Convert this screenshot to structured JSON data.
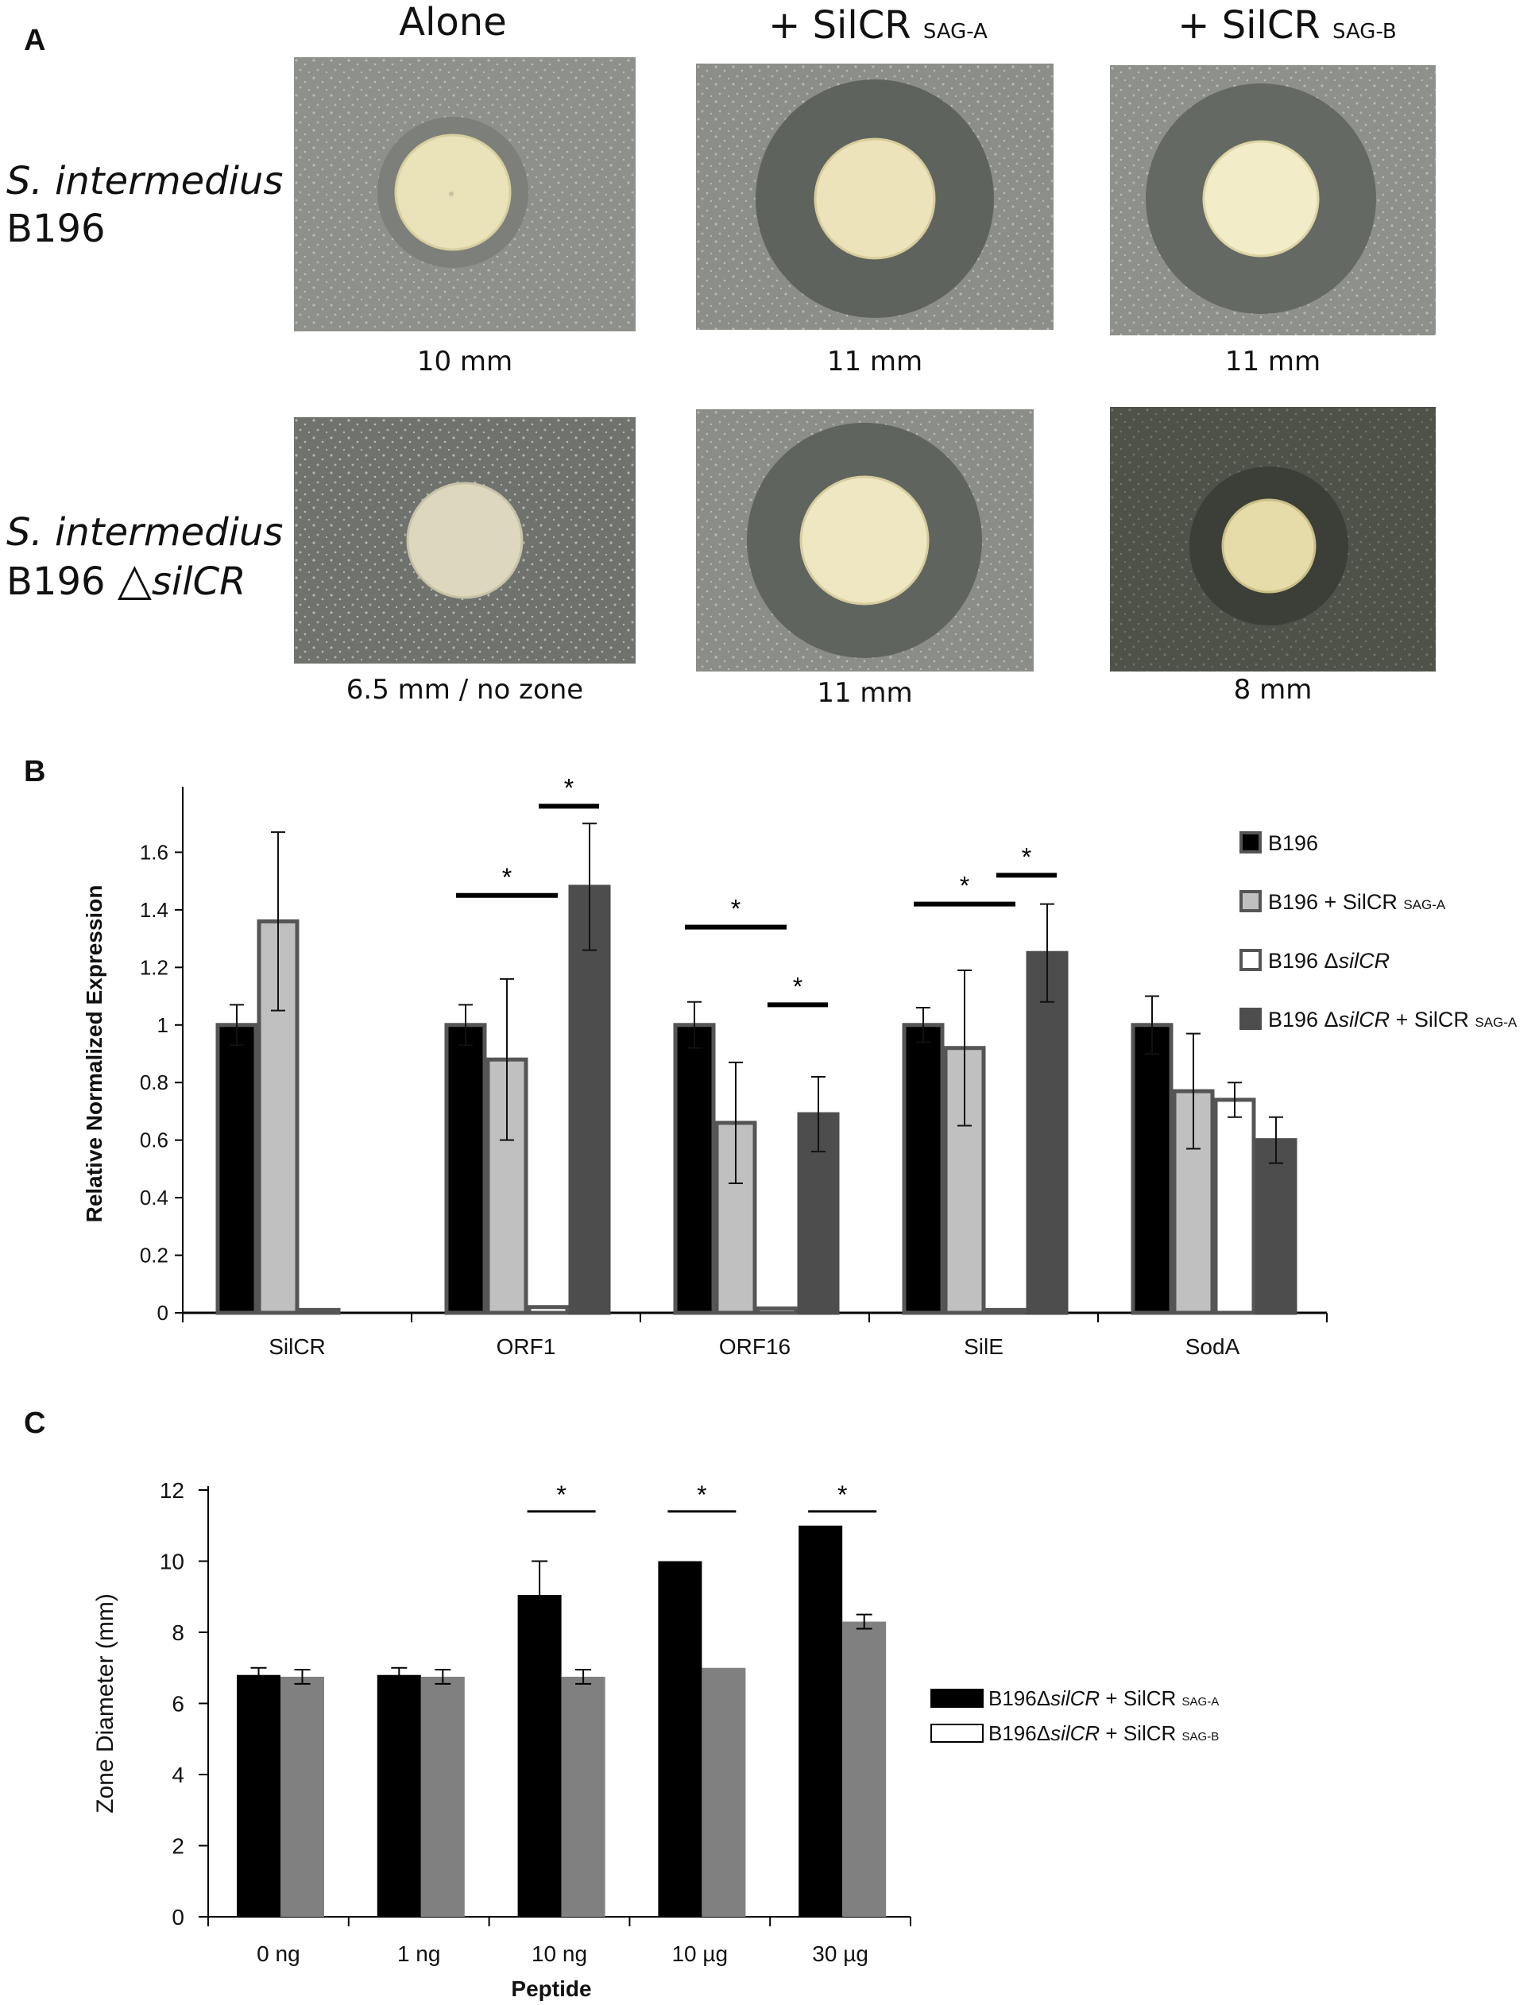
{
  "panelA": {
    "letter": "A",
    "columns": [
      {
        "main": "Alone",
        "sub": ""
      },
      {
        "main": "+ SilCR ",
        "sub": "SAG-A"
      },
      {
        "main": "+ SilCR ",
        "sub": "SAG-B"
      }
    ],
    "rows": [
      {
        "species": "S. intermedius",
        "strain": "B196",
        "mutation": ""
      },
      {
        "species": "S. intermedius",
        "strain": "B196 ",
        "mutation": "silCR",
        "symbol": "△"
      }
    ],
    "zones": [
      [
        "10 mm",
        "11 mm",
        "11 mm"
      ],
      [
        "6.5 mm / no zone",
        "11 mm",
        "8 mm"
      ]
    ],
    "colors": {
      "agar": "#8e918b",
      "halo": "#5d615c",
      "colony": "#eae2b8",
      "dark_plate": "#4f5249"
    }
  },
  "chart_data": [
    {
      "panel": "B",
      "type": "bar",
      "ylabel": "Relative Normalized Expression",
      "xlabel": "",
      "ylim": [
        0,
        1.8
      ],
      "yticks": [
        "0",
        "0.2",
        "0.4",
        "0.6",
        "0.8",
        "1",
        "1.2",
        "1.4",
        "1.6"
      ],
      "categories": [
        "SilCR",
        "ORF1",
        "ORF16",
        "SilE",
        "SodA"
      ],
      "series": [
        {
          "name": "B196",
          "name_italic": "",
          "name_tail": "",
          "name_sub": "",
          "color": "#000000",
          "stroke": "#555555",
          "values": [
            1.0,
            1.0,
            1.0,
            1.0,
            1.0
          ],
          "errors": [
            0.07,
            0.07,
            0.08,
            0.06,
            0.1
          ]
        },
        {
          "name": "B196 + SilCR ",
          "name_italic": "",
          "name_tail": "",
          "name_sub": "SAG-A",
          "color": "#c0c0c0",
          "stroke": "#555555",
          "values": [
            1.36,
            0.88,
            0.66,
            0.92,
            0.77
          ],
          "errors": [
            0.31,
            0.28,
            0.21,
            0.27,
            0.2
          ]
        },
        {
          "name": "B196 Δ",
          "name_italic": "silCR",
          "name_tail": "",
          "name_sub": "",
          "color": "#ffffff",
          "stroke": "#555555",
          "values": [
            0.01,
            0.02,
            0.015,
            0.01,
            0.74
          ],
          "errors": [
            0,
            0,
            0,
            0,
            0.06
          ]
        },
        {
          "name": "B196 Δ",
          "name_italic": "silCR",
          "name_tail": " + SilCR ",
          "name_sub": "SAG-A",
          "color": "#4d4d4d",
          "stroke": "#4d4d4d",
          "values": [
            null,
            1.48,
            0.69,
            1.25,
            0.6
          ],
          "errors": [
            0,
            0.22,
            0.13,
            0.17,
            0.08
          ]
        }
      ],
      "significance": [
        {
          "category": "ORF1",
          "from_series": 0,
          "to_series": 2,
          "y": 1.45,
          "label": "*"
        },
        {
          "category": "ORF1",
          "from_series": 2,
          "to_series": 3,
          "y": 1.76,
          "label": "*"
        },
        {
          "category": "ORF16",
          "from_series": 0,
          "to_series": 2,
          "y": 1.34,
          "label": "*"
        },
        {
          "category": "ORF16",
          "from_series": 2,
          "to_series": 3,
          "y": 1.07,
          "label": "*"
        },
        {
          "category": "SilE",
          "from_series": 0,
          "to_series": 2,
          "y": 1.42,
          "label": "*"
        },
        {
          "category": "SilE",
          "from_series": 2,
          "to_series": 3,
          "y": 1.52,
          "label": "*"
        }
      ],
      "legend": "right"
    },
    {
      "panel": "C",
      "type": "bar",
      "ylabel": "Zone Diameter (mm)",
      "xlabel": "Peptide",
      "ylim": [
        0,
        12
      ],
      "yticks": [
        "0",
        "2",
        "4",
        "6",
        "8",
        "10",
        "12"
      ],
      "categories": [
        "0 ng",
        "1 ng",
        "10 ng",
        "10 µg",
        "30 µg"
      ],
      "series": [
        {
          "name": "B196Δ",
          "name_italic": "silCR",
          "name_tail": " + SilCR ",
          "name_sub": "SAG-A",
          "color": "#000000",
          "legend_fill": "#000000",
          "values": [
            6.8,
            6.8,
            9.05,
            10.0,
            11.0
          ],
          "errors": [
            0.2,
            0.2,
            0.95,
            0,
            0
          ]
        },
        {
          "name": "B196Δ",
          "name_italic": "silCR",
          "name_tail": " + SilCR ",
          "name_sub": "SAG-B",
          "color": "#808080",
          "legend_fill": "#ffffff",
          "values": [
            6.75,
            6.75,
            6.75,
            7.0,
            8.3
          ],
          "errors": [
            0.2,
            0.2,
            0.2,
            0,
            0.2
          ]
        }
      ],
      "significance": [
        {
          "category": "10 ng",
          "y": 11.4,
          "label": "*"
        },
        {
          "category": "10 µg",
          "y": 11.4,
          "label": "*"
        },
        {
          "category": "30 µg",
          "y": 11.4,
          "label": "*"
        }
      ],
      "legend": "right"
    }
  ]
}
